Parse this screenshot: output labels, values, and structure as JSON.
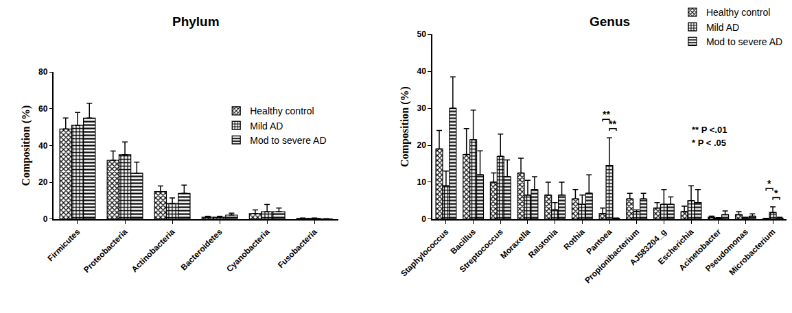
{
  "chart_data": [
    {
      "type": "bar",
      "title": "Phylum",
      "y_label": "Composition (%)",
      "categories": [
        "Firmicutes",
        "Proteobacteria",
        "Actinobacteria",
        "Bacteroidetes",
        "Cyanobacteria",
        "Fusobacteria"
      ],
      "series": [
        {
          "name": "Healthy control",
          "color": "#000000",
          "marker": "x",
          "values": [
            49,
            32,
            15,
            1,
            3,
            0.4
          ],
          "errors": [
            6,
            5,
            3,
            0.5,
            2,
            0.2
          ]
        },
        {
          "name": "Mild AD",
          "color": "#000000",
          "marker": "+",
          "values": [
            51,
            35,
            8.5,
            1,
            4,
            0.4
          ],
          "errors": [
            7,
            7,
            3,
            0.5,
            4,
            0.2
          ]
        },
        {
          "name": "Mod to severe AD",
          "color": "#000000",
          "marker": "-",
          "values": [
            55,
            25,
            14,
            2.2,
            4,
            0.1
          ],
          "errors": [
            8,
            6,
            4.5,
            1,
            2,
            0.1
          ]
        }
      ],
      "ylim": [
        0,
        80
      ],
      "yticks": [
        0,
        20,
        40,
        60,
        80
      ],
      "grid": false,
      "legend": "upper right"
    },
    {
      "type": "bar",
      "title": "Genus",
      "y_label": "Composition (%)",
      "categories": [
        "Staphylococcus",
        "Bacillus",
        "Streptococcus",
        "Moraxella",
        "Ralstonia",
        "Rothia",
        "Pantoea",
        "Propionibacterium",
        "AJ583204_g",
        "Escherichia",
        "Acinetobacter",
        "Pseudomonas",
        "Microbacterium"
      ],
      "series": [
        {
          "name": "Healthy control",
          "color": "#000000",
          "marker": "x",
          "values": [
            19,
            17.5,
            10,
            12.5,
            6.5,
            5.5,
            1.5,
            5.5,
            3,
            2,
            0.5,
            1.2,
            0.1
          ],
          "errors": [
            5,
            7,
            2.5,
            4,
            3.5,
            2.5,
            1.5,
            1.5,
            1.5,
            1.5,
            0.3,
            0.8,
            0.1
          ]
        },
        {
          "name": "Mild AD",
          "color": "#000000",
          "marker": "+",
          "values": [
            9,
            21.5,
            17,
            6.5,
            2.5,
            4,
            14.5,
            2,
            4,
            5,
            0.2,
            0.3,
            1.8
          ],
          "errors": [
            4,
            8,
            6,
            4,
            2,
            2.5,
            7.5,
            0.5,
            4,
            4,
            0.2,
            0.2,
            1.5
          ]
        },
        {
          "name": "Mod to severe AD",
          "color": "#000000",
          "marker": "-",
          "values": [
            30,
            12,
            11.5,
            8,
            6.5,
            7,
            0.2,
            5.5,
            4,
            4.5,
            1.2,
            0.8,
            0.3
          ],
          "errors": [
            8.5,
            6.5,
            4.5,
            3.5,
            3.5,
            5,
            0.1,
            1.5,
            2,
            3.5,
            1,
            0.6,
            0.2
          ]
        }
      ],
      "ylim": [
        0,
        50
      ],
      "yticks": [
        0,
        10,
        20,
        30,
        40,
        50
      ],
      "grid": false,
      "legend": "upper right",
      "annotations": [
        {
          "category": "Pantoea",
          "between": [
            "Healthy control",
            "Mild AD"
          ],
          "text": "**"
        },
        {
          "category": "Pantoea",
          "between": [
            "Mild AD",
            "Mod to severe AD"
          ],
          "text": "**"
        },
        {
          "category": "Microbacterium",
          "between": [
            "Healthy control",
            "Mild AD"
          ],
          "text": "*"
        },
        {
          "category": "Microbacterium",
          "between": [
            "Mild AD",
            "Mod to severe AD"
          ],
          "text": "*"
        }
      ],
      "notes": [
        "** P <.01",
        "* P < .05"
      ]
    }
  ]
}
